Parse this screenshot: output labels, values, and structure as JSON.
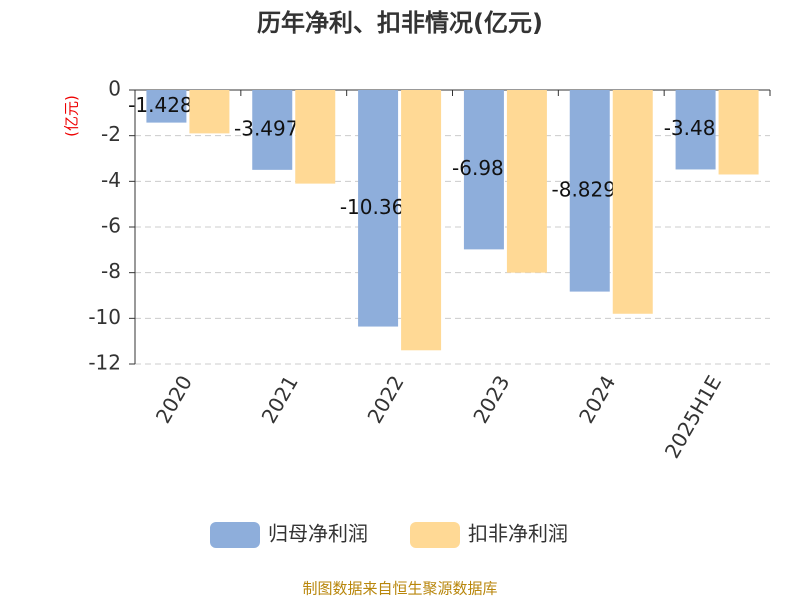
{
  "chart_data": {
    "type": "bar",
    "title": "历年净利、扣非情况(亿元)",
    "y_label": "(亿元)",
    "categories": [
      "2020",
      "2021",
      "2022",
      "2023",
      "2024",
      "2025H1E"
    ],
    "series": [
      {
        "name": "归母净利润",
        "color": "#8eaedb",
        "values": [
          -1.428,
          -3.497,
          -10.36,
          -6.98,
          -8.829,
          -3.48
        ]
      },
      {
        "name": "扣非净利润",
        "color": "#ffd995",
        "values": [
          -1.9,
          -4.1,
          -11.4,
          -8.0,
          -9.8,
          -3.7
        ]
      }
    ],
    "ylim": [
      -12,
      0
    ],
    "yticks": [
      0,
      -2,
      -4,
      -6,
      -8,
      -10,
      -12
    ],
    "grid": true,
    "source": "制图数据来自恒生聚源数据库"
  }
}
